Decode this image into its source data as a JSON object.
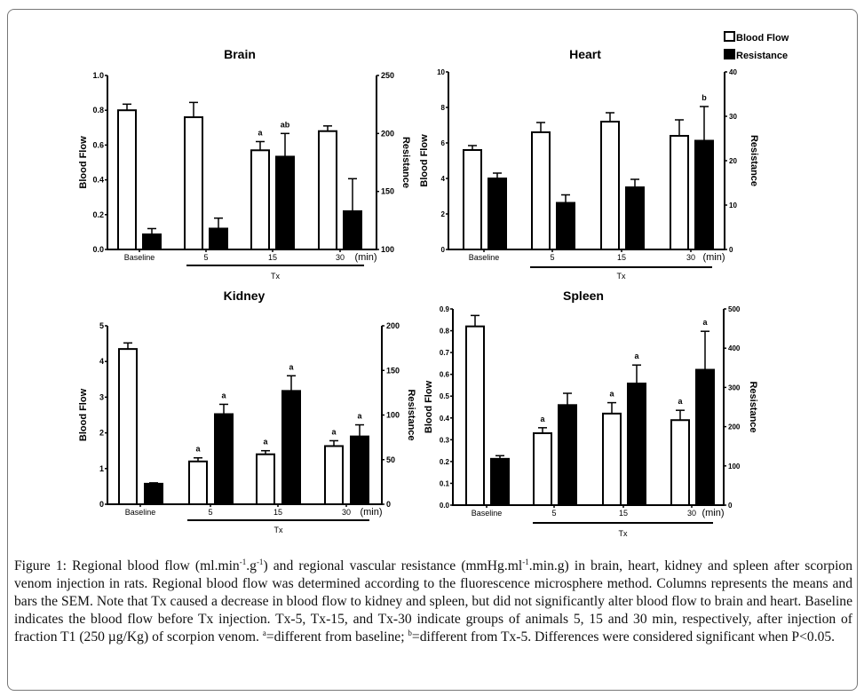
{
  "legend": {
    "items": [
      {
        "label": "Blood Flow",
        "fill": "#ffffff"
      },
      {
        "label": "Resistance",
        "fill": "#000000"
      }
    ]
  },
  "chart_data": [
    {
      "type": "bar",
      "title": "Brain",
      "categories": [
        "Baseline",
        "5",
        "15",
        "30"
      ],
      "x_unit_label": "(min)",
      "group_label": "Tx",
      "ylabel": "Blood Flow",
      "ylabel_right": "Resistance",
      "ylim": [
        0,
        1.0
      ],
      "ylim_right": [
        100,
        250
      ],
      "yticks": [
        "0.0",
        "0.2",
        "0.4",
        "0.6",
        "0.8",
        "1.0"
      ],
      "yticks_right": [
        "100",
        "150",
        "200",
        "250"
      ],
      "series": [
        {
          "name": "Blood Flow",
          "axis": "left",
          "values": [
            0.8,
            0.76,
            0.57,
            0.68
          ],
          "sem": [
            0.035,
            0.085,
            0.05,
            0.03
          ],
          "annotations": [
            "",
            "",
            "a",
            ""
          ]
        },
        {
          "name": "Resistance",
          "axis": "right",
          "values": [
            113,
            118,
            180,
            133
          ],
          "sem": [
            5,
            9,
            20,
            28
          ],
          "annotations": [
            "",
            "",
            "ab",
            ""
          ]
        }
      ]
    },
    {
      "type": "bar",
      "title": "Heart",
      "categories": [
        "Baseline",
        "5",
        "15",
        "30"
      ],
      "x_unit_label": "(min)",
      "group_label": "Tx",
      "ylabel": "Blood Flow",
      "ylabel_right": "Resistance",
      "ylim": [
        0,
        10
      ],
      "ylim_right": [
        0,
        40
      ],
      "yticks": [
        "0",
        "2",
        "4",
        "6",
        "8",
        "10"
      ],
      "yticks_right": [
        "0",
        "10",
        "20",
        "30",
        "40"
      ],
      "series": [
        {
          "name": "Blood Flow",
          "axis": "left",
          "values": [
            5.6,
            6.6,
            7.2,
            6.4
          ],
          "sem": [
            0.25,
            0.55,
            0.5,
            0.9
          ],
          "annotations": [
            "",
            "",
            "",
            ""
          ]
        },
        {
          "name": "Resistance",
          "axis": "right",
          "values": [
            16,
            10.5,
            14,
            24.5
          ],
          "sem": [
            1.2,
            1.8,
            1.8,
            7.7
          ],
          "annotations": [
            "",
            "",
            "",
            "b"
          ]
        }
      ]
    },
    {
      "type": "bar",
      "title": "Kidney",
      "categories": [
        "Baseline",
        "5",
        "15",
        "30"
      ],
      "x_unit_label": "(min)",
      "group_label": "Tx",
      "ylabel": "Blood Flow",
      "ylabel_right": "Resistance",
      "ylim": [
        0,
        5
      ],
      "ylim_right": [
        0,
        200
      ],
      "yticks": [
        "0",
        "1",
        "2",
        "3",
        "4",
        "5"
      ],
      "yticks_right": [
        "0",
        "50",
        "100",
        "150",
        "200"
      ],
      "series": [
        {
          "name": "Blood Flow",
          "axis": "left",
          "values": [
            4.35,
            1.2,
            1.4,
            1.63
          ],
          "sem": [
            0.17,
            0.1,
            0.1,
            0.15
          ],
          "annotations": [
            "",
            "a",
            "a",
            "a"
          ]
        },
        {
          "name": "Resistance",
          "axis": "right",
          "values": [
            23,
            101,
            127,
            76
          ],
          "sem": [
            1,
            11,
            17,
            13
          ],
          "annotations": [
            "",
            "a",
            "a",
            "a"
          ]
        }
      ]
    },
    {
      "type": "bar",
      "title": "Spleen",
      "categories": [
        "Baseline",
        "5",
        "15",
        "30"
      ],
      "x_unit_label": "(min)",
      "group_label": "Tx",
      "ylabel": "Blood Flow",
      "ylabel_right": "Resistance",
      "ylim": [
        0,
        0.9
      ],
      "ylim_right": [
        0,
        500
      ],
      "yticks": [
        "0.0",
        "0.1",
        "0.2",
        "0.3",
        "0.4",
        "0.5",
        "0.6",
        "0.7",
        "0.8",
        "0.9"
      ],
      "yticks_right": [
        "0",
        "100",
        "200",
        "300",
        "400",
        "500"
      ],
      "series": [
        {
          "name": "Blood Flow",
          "axis": "left",
          "values": [
            0.82,
            0.33,
            0.42,
            0.39
          ],
          "sem": [
            0.05,
            0.025,
            0.05,
            0.045
          ],
          "annotations": [
            "",
            "a",
            "a",
            "a"
          ]
        },
        {
          "name": "Resistance",
          "axis": "right",
          "values": [
            118,
            255,
            310,
            345
          ],
          "sem": [
            8,
            30,
            47,
            98
          ],
          "annotations": [
            "",
            "",
            "a",
            "a"
          ]
        }
      ]
    }
  ],
  "caption": {
    "label": "Figure 1:",
    "part1": " Regional blood flow (ml.min",
    "sup1": "-1",
    "part2": ".g",
    "sup2": "-1",
    "part3": ") and regional vascular resistance (mmHg.ml",
    "sup3": "-1",
    "part4": ".min.g) in brain, heart, kidney and spleen after scorpion venom injection in rats. Regional blood flow was determined according to the fluorescence microsphere method. Columns represents the means and bars the SEM. Note that Tx caused a decrease in blood flow to kidney and spleen, but did not significantly alter blood flow to brain and heart. Baseline indicates the blood flow before Tx injection. Tx-5, Tx-15, and Tx-30 indicate groups of animals 5, 15 and 30 min, respectively, after injection of fraction T1 (250 µg/Kg) of scorpion venom. ",
    "sup_a": "a",
    "part5": "=different from baseline; ",
    "sup_b": "b",
    "part6": "=different from Tx-5. Differences were considered significant when P<0.05."
  }
}
